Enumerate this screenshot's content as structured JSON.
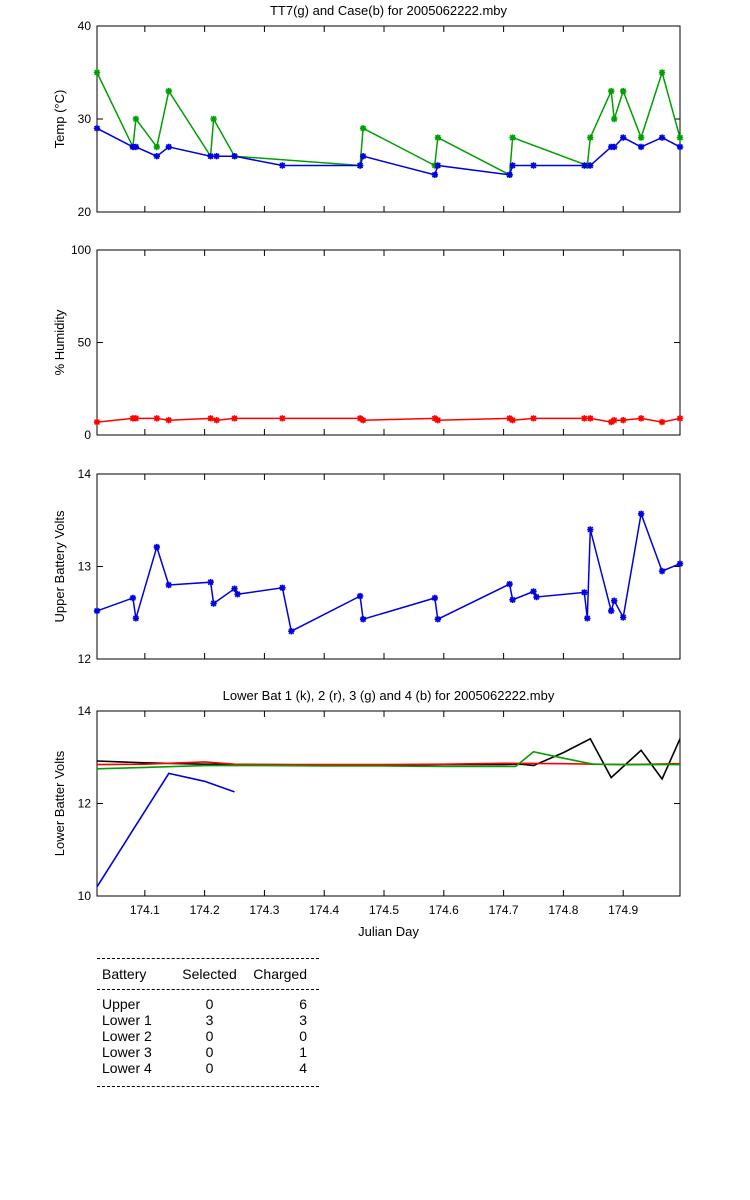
{
  "chart_data": [
    {
      "type": "line",
      "title": "TT7(g) and Case(b) for 2005062222.mby",
      "xlabel": "",
      "ylabel": "Temp  (°C)",
      "xlim": [
        174.02,
        174.995
      ],
      "ylim": [
        20,
        40
      ],
      "yticks": [
        20,
        30,
        40
      ],
      "xticks": [],
      "markers": true,
      "series": [
        {
          "color": "#00a000",
          "x": [
            174.02,
            174.08,
            174.085,
            174.12,
            174.14,
            174.21,
            174.215,
            174.25,
            174.46,
            174.465,
            174.585,
            174.59,
            174.71,
            174.715,
            174.84,
            174.845,
            174.88,
            174.885,
            174.9,
            174.93,
            174.965,
            174.995
          ],
          "y": [
            35,
            27,
            30,
            27,
            33,
            26,
            30,
            26,
            25,
            29,
            25,
            28,
            24,
            28,
            25,
            28,
            33,
            30,
            33,
            28,
            35,
            28
          ]
        },
        {
          "color": "#0000e0",
          "x": [
            174.02,
            174.08,
            174.085,
            174.12,
            174.14,
            174.21,
            174.22,
            174.25,
            174.33,
            174.46,
            174.465,
            174.585,
            174.59,
            174.71,
            174.715,
            174.75,
            174.835,
            174.845,
            174.88,
            174.885,
            174.9,
            174.93,
            174.965,
            174.995
          ],
          "y": [
            29,
            27,
            27,
            26,
            27,
            26,
            26,
            26,
            25,
            25,
            26,
            24,
            25,
            24,
            25,
            25,
            25,
            25,
            27,
            27,
            28,
            27,
            28,
            27
          ]
        }
      ]
    },
    {
      "type": "line",
      "title": "",
      "xlabel": "",
      "ylabel": "% Humidity",
      "xlim": [
        174.02,
        174.995
      ],
      "ylim": [
        0,
        100
      ],
      "yticks": [
        0,
        50,
        100
      ],
      "xticks": [],
      "markers": true,
      "series": [
        {
          "color": "#ff0000",
          "x": [
            174.02,
            174.08,
            174.085,
            174.12,
            174.14,
            174.21,
            174.22,
            174.25,
            174.33,
            174.46,
            174.465,
            174.585,
            174.59,
            174.71,
            174.715,
            174.75,
            174.835,
            174.845,
            174.88,
            174.885,
            174.9,
            174.93,
            174.965,
            174.995
          ],
          "y": [
            7,
            9,
            9,
            9,
            8,
            9,
            8,
            9,
            9,
            9,
            8,
            9,
            8,
            9,
            8,
            9,
            9,
            9,
            7,
            8,
            8,
            9,
            7,
            9
          ]
        }
      ]
    },
    {
      "type": "line",
      "title": "",
      "xlabel": "",
      "ylabel": "Upper Battery Volts",
      "xlim": [
        174.02,
        174.995
      ],
      "ylim": [
        12,
        14
      ],
      "yticks": [
        12,
        13,
        14
      ],
      "xticks": [],
      "markers": true,
      "series": [
        {
          "color": "#0000e0",
          "x": [
            174.02,
            174.08,
            174.085,
            174.12,
            174.14,
            174.21,
            174.215,
            174.25,
            174.255,
            174.33,
            174.345,
            174.46,
            174.465,
            174.585,
            174.59,
            174.71,
            174.715,
            174.75,
            174.755,
            174.835,
            174.84,
            174.845,
            174.88,
            174.885,
            174.9,
            174.93,
            174.965,
            174.995
          ],
          "y": [
            12.52,
            12.66,
            12.44,
            13.21,
            12.8,
            12.83,
            12.6,
            12.76,
            12.7,
            12.77,
            12.3,
            12.68,
            12.43,
            12.66,
            12.43,
            12.81,
            12.64,
            12.73,
            12.67,
            12.72,
            12.44,
            13.4,
            12.52,
            12.63,
            12.45,
            13.57,
            12.95,
            13.03
          ]
        }
      ]
    },
    {
      "type": "line",
      "title": "Lower Bat 1 (k), 2 (r), 3 (g) and 4 (b) for 2005062222.mby",
      "xlabel": "Julian Day",
      "ylabel": "Lower Batter Volts",
      "xlim": [
        174.02,
        174.995
      ],
      "ylim": [
        10,
        14
      ],
      "yticks": [
        10,
        12,
        14
      ],
      "xticks": [
        174.1,
        174.2,
        174.3,
        174.4,
        174.5,
        174.6,
        174.7,
        174.8,
        174.9
      ],
      "markers": false,
      "series": [
        {
          "color": "#000000",
          "x": [
            174.02,
            174.1,
            174.2,
            174.3,
            174.4,
            174.5,
            174.6,
            174.7,
            174.73,
            174.75,
            174.8,
            174.845,
            174.88,
            174.93,
            174.965,
            174.995
          ],
          "y": [
            12.92,
            12.88,
            12.85,
            12.84,
            12.83,
            12.83,
            12.84,
            12.84,
            12.85,
            12.82,
            13.1,
            13.4,
            12.56,
            13.15,
            12.53,
            13.4
          ]
        },
        {
          "color": "#ff0000",
          "x": [
            174.02,
            174.1,
            174.2,
            174.25,
            174.3,
            174.4,
            174.5,
            174.6,
            174.7,
            174.8,
            174.9,
            174.995
          ],
          "y": [
            12.84,
            12.85,
            12.9,
            12.85,
            12.84,
            12.84,
            12.84,
            12.85,
            12.87,
            12.86,
            12.84,
            12.86
          ]
        },
        {
          "color": "#00a000",
          "x": [
            174.02,
            174.1,
            174.2,
            174.3,
            174.4,
            174.5,
            174.6,
            174.7,
            174.72,
            174.75,
            174.8,
            174.85,
            174.9,
            174.995
          ],
          "y": [
            12.75,
            12.78,
            12.82,
            12.82,
            12.81,
            12.81,
            12.8,
            12.8,
            12.8,
            13.12,
            12.98,
            12.85,
            12.84,
            12.84
          ]
        },
        {
          "color": "#0000e0",
          "x": [
            174.02,
            174.14,
            174.2,
            174.25
          ],
          "y": [
            10.2,
            12.65,
            12.48,
            12.25
          ]
        }
      ]
    }
  ],
  "table": {
    "headers": [
      "Battery",
      "Selected",
      "Charged"
    ],
    "rows": [
      [
        "Upper",
        "0",
        "6"
      ],
      [
        "Lower 1",
        "3",
        "3"
      ],
      [
        "Lower 2",
        "0",
        "0"
      ],
      [
        "Lower 3",
        "0",
        "1"
      ],
      [
        "Lower 4",
        "0",
        "4"
      ]
    ]
  }
}
